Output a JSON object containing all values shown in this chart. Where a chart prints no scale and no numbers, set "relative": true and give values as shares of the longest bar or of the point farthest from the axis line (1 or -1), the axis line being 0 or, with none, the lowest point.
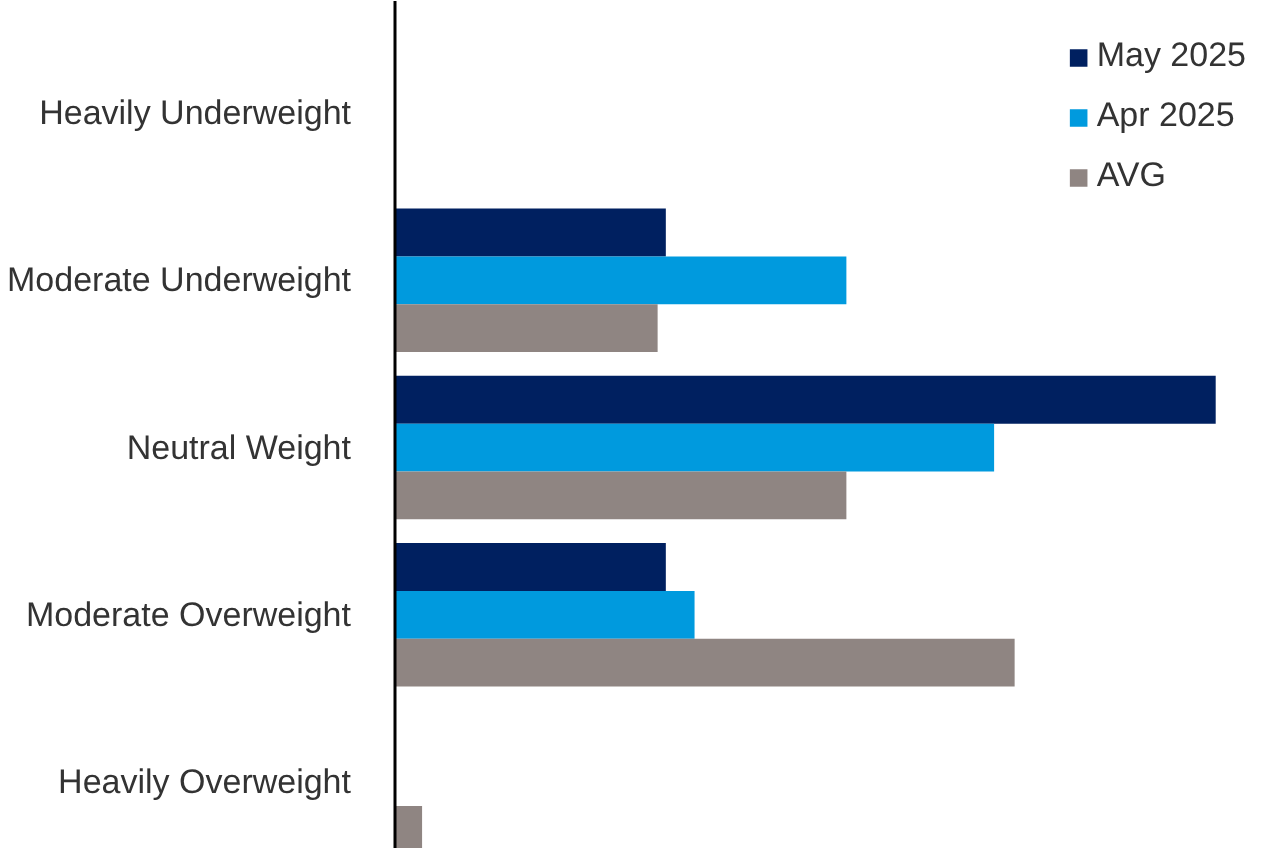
{
  "chart_data": {
    "type": "bar",
    "orientation": "horizontal",
    "relative": true,
    "legend": "top right",
    "grid": false,
    "categories": [
      "Heavily Underweight",
      "Moderate Underweight",
      "Neutral Weight",
      "Moderate Overweight",
      "Heavily Overweight"
    ],
    "series": [
      {
        "name": "May 2025",
        "color": "#002060",
        "values": [
          0,
          0.33,
          1,
          0.33,
          0
        ]
      },
      {
        "name": "Apr 2025",
        "color": "#009ade",
        "values": [
          0,
          0.55,
          0.73,
          0.365,
          0
        ]
      },
      {
        "name": "AVG",
        "color": "#8f8582",
        "values": [
          0,
          0.32,
          0.55,
          0.755,
          0.033
        ]
      }
    ]
  }
}
